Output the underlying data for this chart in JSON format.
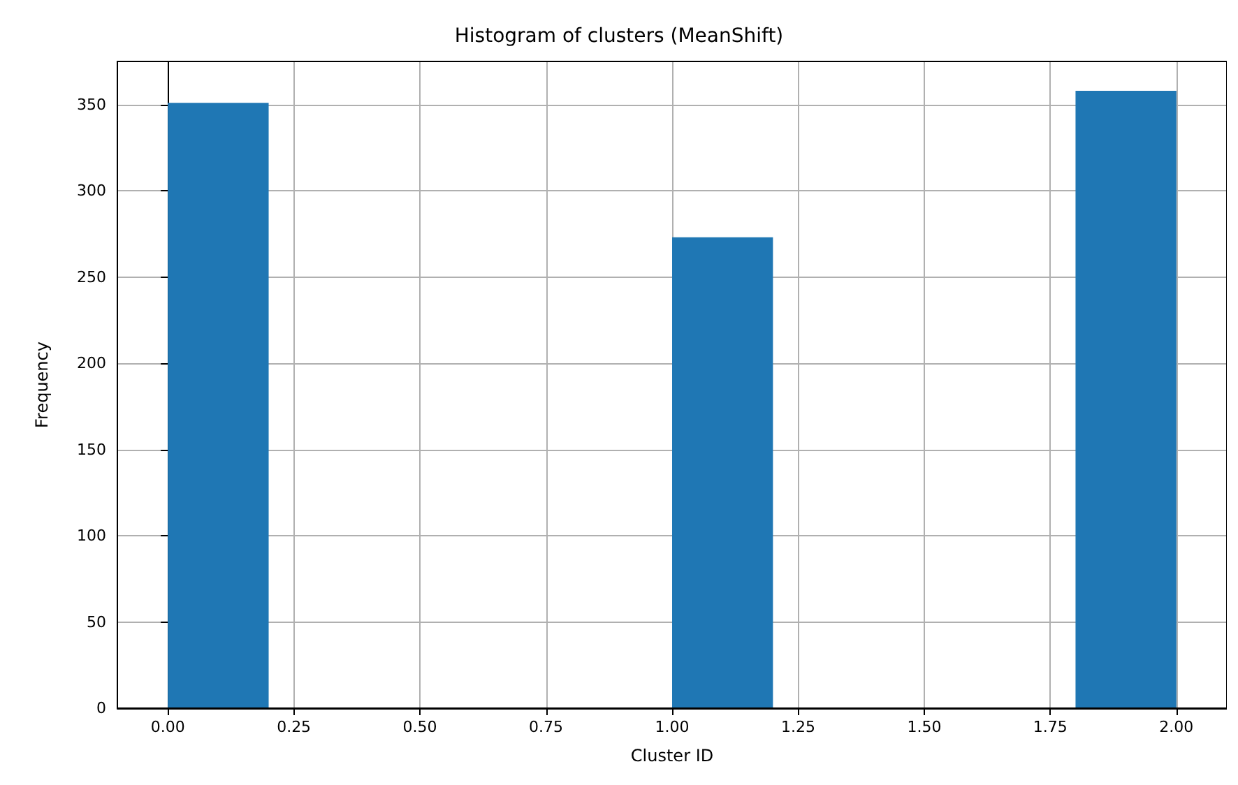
{
  "chart_data": {
    "type": "histogram",
    "title": "Histogram of clusters (MeanShift)",
    "xlabel": "Cluster ID",
    "ylabel": "Frequency",
    "bins": [
      0,
      0.2,
      0.4,
      0.6,
      0.8,
      1.0,
      1.2,
      1.4,
      1.6,
      1.8,
      2.0
    ],
    "values": [
      351,
      0,
      0,
      0,
      0,
      273,
      0,
      0,
      0,
      358
    ],
    "color": "#1f77b4",
    "xlim": [
      -0.1,
      2.1
    ],
    "xticks": [
      {
        "value": 0,
        "label": "0.00"
      },
      {
        "value": 0.25,
        "label": "0.25"
      },
      {
        "value": 0.5,
        "label": "0.50"
      },
      {
        "value": 0.75,
        "label": "0.75"
      },
      {
        "value": 1,
        "label": "1.00"
      },
      {
        "value": 1.25,
        "label": "1.25"
      },
      {
        "value": 1.5,
        "label": "1.50"
      },
      {
        "value": 1.75,
        "label": "1.75"
      },
      {
        "value": 2,
        "label": "2.00"
      }
    ],
    "ylim": [
      0,
      375
    ],
    "yticks": [
      0,
      50,
      100,
      150,
      200,
      250,
      300,
      350
    ],
    "grid": true
  }
}
